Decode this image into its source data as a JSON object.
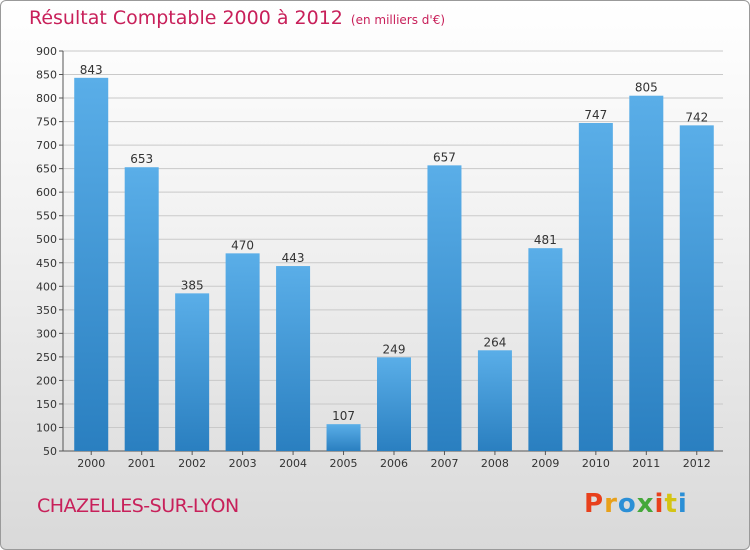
{
  "colors": {
    "accent": "#c8205a",
    "bar_light": "#5aaee8",
    "bar_dark": "#2a7fc0",
    "grid": "#c9c9c9"
  },
  "footer": {
    "city": "CHAZELLES-SUR-LYON",
    "logo_letters": [
      "P",
      "r",
      "o",
      "x",
      "i",
      "t",
      "i"
    ],
    "logo_colors": [
      "#e8401c",
      "#e8a019",
      "#2b8fd6",
      "#45a83a",
      "#e8401c",
      "#d4c414",
      "#2b8fd6"
    ]
  },
  "chart_data": {
    "type": "bar",
    "title": "Résultat Comptable 2000 à 2012",
    "subtitle": "(en milliers d'€)",
    "xlabel": "",
    "ylabel": "",
    "ylim": [
      50,
      900
    ],
    "yticks": [
      50,
      100,
      150,
      200,
      250,
      300,
      350,
      400,
      450,
      500,
      550,
      600,
      650,
      700,
      750,
      800,
      850,
      900
    ],
    "grid": true,
    "categories": [
      "2000",
      "2001",
      "2002",
      "2003",
      "2004",
      "2005",
      "2006",
      "2007",
      "2008",
      "2009",
      "2010",
      "2011",
      "2012"
    ],
    "values": [
      843,
      653,
      385,
      470,
      443,
      107,
      249,
      657,
      264,
      481,
      747,
      805,
      742
    ]
  }
}
